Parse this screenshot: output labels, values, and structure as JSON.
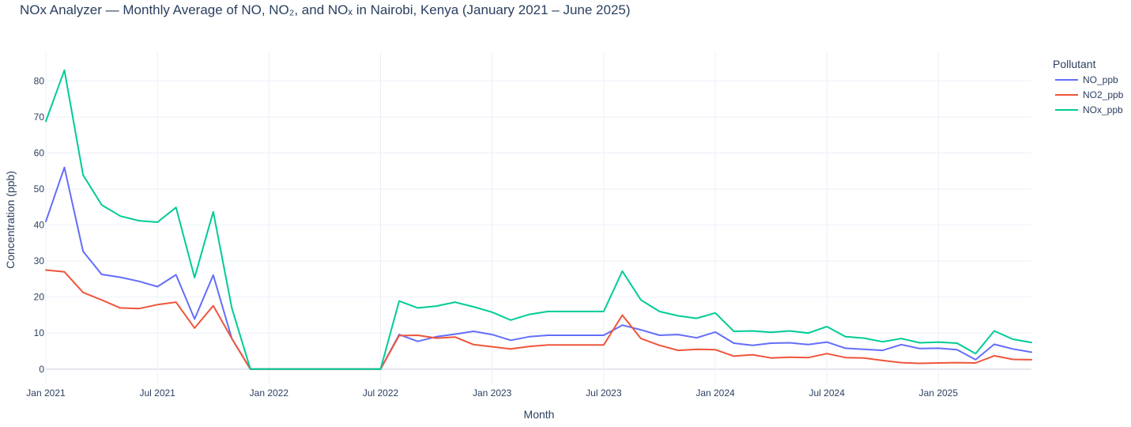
{
  "chart_data": {
    "type": "line",
    "title": "NOx Analyzer — Monthly Average of NO, NO₂, and NOₓ in Nairobi, Kenya (January 2021 – June 2025)",
    "xlabel": "Month",
    "ylabel": "Concentration (ppb)",
    "legend_title": "Pollutant",
    "legend_position": "top-right",
    "grid": true,
    "x_ticks": [
      "Jan 2021",
      "Jul 2021",
      "Jan 2022",
      "Jul 2022",
      "Jan 2023",
      "Jul 2023",
      "Jan 2024",
      "Jul 2024",
      "Jan 2025"
    ],
    "y_ticks": [
      0,
      10,
      20,
      30,
      40,
      50,
      60,
      70,
      80
    ],
    "ylim": [
      -4,
      88
    ],
    "xlim": [
      "2021-01",
      "2025-06"
    ],
    "x": [
      "2021-01",
      "2021-02",
      "2021-03",
      "2021-04",
      "2021-05",
      "2021-06",
      "2021-07",
      "2021-08",
      "2021-09",
      "2021-10",
      "2021-11",
      "2021-12",
      "2022-01",
      "2022-02",
      "2022-03",
      "2022-04",
      "2022-05",
      "2022-06",
      "2022-07",
      "2022-08",
      "2022-09",
      "2022-10",
      "2022-11",
      "2022-12",
      "2023-01",
      "2023-02",
      "2023-03",
      "2023-04",
      "2023-05",
      "2023-06",
      "2023-07",
      "2023-08",
      "2023-09",
      "2023-10",
      "2023-11",
      "2023-12",
      "2024-01",
      "2024-02",
      "2024-03",
      "2024-04",
      "2024-05",
      "2024-06",
      "2024-07",
      "2024-08",
      "2024-09",
      "2024-10",
      "2024-11",
      "2024-12",
      "2025-01",
      "2025-02",
      "2025-03",
      "2025-04",
      "2025-05",
      "2025-06"
    ],
    "series": [
      {
        "name": "NO_ppb",
        "color": "#636efa",
        "values": [
          41,
          56,
          32.7,
          26.3,
          25.5,
          24.4,
          22.9,
          26.2,
          13.9,
          26.1,
          8.5,
          0,
          0,
          0,
          0,
          0,
          0,
          0,
          0,
          9.6,
          7.7,
          9,
          9.7,
          10.5,
          9.6,
          8,
          9,
          9.4,
          9.4,
          9.4,
          9.4,
          12.2,
          10.9,
          9.4,
          9.6,
          8.7,
          10.3,
          7.2,
          6.6,
          7.2,
          7.3,
          6.8,
          7.5,
          5.8,
          5.5,
          5.2,
          6.8,
          5.7,
          5.8,
          5.4,
          2.6,
          6.9,
          5.6,
          4.7
        ]
      },
      {
        "name": "NO2_ppb",
        "color": "#ef553b",
        "values": [
          27.5,
          27,
          21.3,
          19.2,
          17,
          16.8,
          17.9,
          18.6,
          11.4,
          17.6,
          8.5,
          0,
          0,
          0,
          0,
          0,
          0,
          0,
          0,
          9.3,
          9.4,
          8.6,
          8.9,
          6.8,
          6.2,
          5.6,
          6.3,
          6.7,
          6.7,
          6.7,
          6.7,
          15,
          8.5,
          6.6,
          5.2,
          5.5,
          5.4,
          3.6,
          4,
          3.1,
          3.3,
          3.2,
          4.3,
          3.2,
          3.1,
          2.4,
          1.8,
          1.6,
          1.7,
          1.8,
          1.7,
          3.7,
          2.7,
          2.6
        ]
      },
      {
        "name": "NOx_ppb",
        "color": "#00cc96",
        "values": [
          68.8,
          83,
          53.9,
          45.6,
          42.5,
          41.2,
          40.8,
          44.9,
          25.4,
          43.7,
          17,
          0,
          0,
          0,
          0,
          0,
          0,
          0,
          0,
          18.9,
          17,
          17.5,
          18.6,
          17.3,
          15.8,
          13.6,
          15.2,
          16,
          16,
          16,
          16,
          27.2,
          19.2,
          16,
          14.8,
          14.1,
          15.6,
          10.5,
          10.6,
          10.2,
          10.6,
          10,
          11.8,
          9,
          8.6,
          7.6,
          8.5,
          7.3,
          7.5,
          7.2,
          4.3,
          10.6,
          8.3,
          7.4
        ]
      }
    ]
  }
}
